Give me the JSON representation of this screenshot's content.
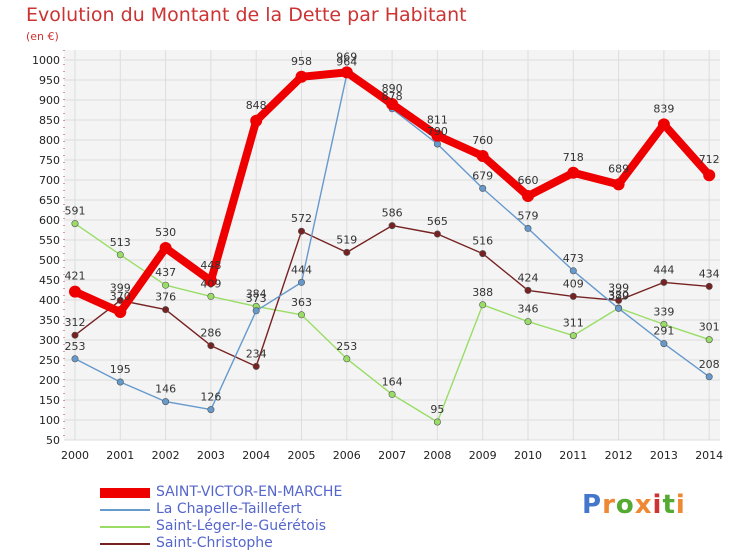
{
  "title": "Evolution du Montant de la Dette par Habitant",
  "subtitle": "(en €)",
  "logo": {
    "text": "Proxiti",
    "letter_colors": [
      "#4477cc",
      "#ee8833",
      "#55aa33",
      "#ee8833",
      "#cc3333",
      "#55aa33",
      "#ee8833"
    ]
  },
  "chart_data": {
    "type": "line",
    "x": [
      "2000",
      "2001",
      "2002",
      "2003",
      "2004",
      "2005",
      "2006",
      "2007",
      "2008",
      "2009",
      "2010",
      "2011",
      "2012",
      "2013",
      "2014"
    ],
    "y_ticks": [
      "50",
      "100",
      "150",
      "200",
      "250",
      "300",
      "350",
      "400",
      "450",
      "500",
      "550",
      "600",
      "650",
      "700",
      "750",
      "800",
      "850",
      "900",
      "950",
      "1000"
    ],
    "ylim": [
      50,
      1000
    ],
    "grid": true,
    "legend_position": "bottom-left",
    "series": [
      {
        "name": "Saint-Léger-le-Guérétois",
        "color": "#99dd66",
        "values": [
          591,
          513,
          437,
          409,
          384,
          363,
          253,
          164,
          95,
          388,
          346,
          311,
          380,
          339,
          301
        ],
        "labels": [
          "591",
          "513",
          "437",
          "409",
          "384",
          "363",
          "253",
          "164",
          "95",
          "388",
          "346",
          "311",
          "380",
          "339",
          "301"
        ]
      },
      {
        "name": "Saint-Christophe",
        "color": "#772222",
        "values": [
          312,
          399,
          376,
          286,
          234,
          572,
          519,
          586,
          565,
          516,
          424,
          409,
          399,
          444,
          434
        ],
        "labels": [
          "312",
          "399",
          "376",
          "286",
          "234",
          "572",
          "519",
          "586",
          "565",
          "516",
          "424",
          "409",
          "399",
          "444",
          "434"
        ]
      },
      {
        "name": "La Chapelle-Taillefert",
        "color": "#6699cc",
        "values": [
          253,
          195,
          146,
          126,
          373,
          444,
          964,
          878,
          790,
          679,
          579,
          473,
          379,
          291,
          208
        ],
        "labels": [
          "253",
          "195",
          "146",
          "126",
          "373",
          "444",
          "964",
          "878",
          "790",
          "679",
          "579",
          "473",
          "379",
          "291",
          "208"
        ]
      },
      {
        "name": "SAINT-VICTOR-EN-MARCHE",
        "color": "#ee0000",
        "values": [
          421,
          370,
          530,
          448,
          848,
          958,
          969,
          890,
          811,
          760,
          660,
          718,
          689,
          839,
          712
        ],
        "labels": [
          "421",
          "370",
          "530",
          "448",
          "848",
          "958",
          "969",
          "890",
          "811",
          "760",
          "660",
          "718",
          "689",
          "839",
          "712"
        ]
      }
    ]
  },
  "legend": [
    {
      "name": "SAINT-VICTOR-EN-MARCHE",
      "color": "#ee0000"
    },
    {
      "name": "La Chapelle-Taillefert",
      "color": "#6699cc"
    },
    {
      "name": "Saint-Léger-le-Guérétois",
      "color": "#99dd66"
    },
    {
      "name": "Saint-Christophe",
      "color": "#772222"
    }
  ]
}
